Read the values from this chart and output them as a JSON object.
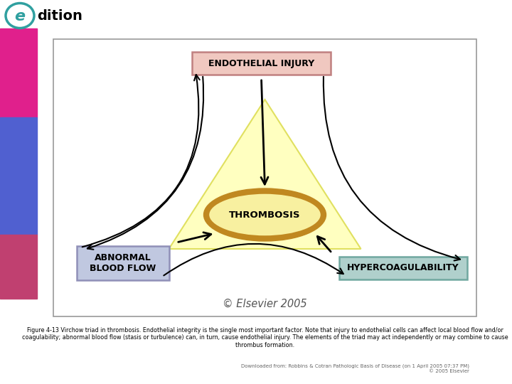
{
  "copyright": "© Elsevier 2005",
  "download_text": "Downloaded from: Robbins & Cotran Pathologic Basis of Disease (on 1 April 2005 07:37 PM)\n© 2005 Elsevier",
  "endothelial_label": "ENDOTHELIAL INJURY",
  "thrombosis_label": "THROMBOSIS",
  "abnormal_label": "ABNORMAL\nBLOOD FLOW",
  "hypercoag_label": "HYPERCOAGULABILITY",
  "caption": "Figure 4-13 Virchow triad in thrombosis. Endothelial integrity is the single most important factor. Note that injury to endothelial cells can affect local blood flow and/or\ncoagulability; abnormal blood flow (stasis or turbulence) can, in turn, cause endothelial injury. The elements of the triad may act independently or may combine to cause\nthrombus formation.",
  "bg_color": "#ffffff",
  "endothelial_box_edge": "#c08080",
  "endothelial_box_fill": "#f0c8c0",
  "abnormal_box_edge": "#9090b8",
  "abnormal_box_fill": "#c0c8e0",
  "hypercoag_box_edge": "#70a8a0",
  "hypercoag_box_fill": "#b0d0cc",
  "triangle_fill": "#ffffc0",
  "triangle_edge": "#e0e060",
  "ellipse_fill": "#f8f0a0",
  "ellipse_edge": "#c08820",
  "arrow_color": "#000000",
  "sidebar_pink": "#e0208c",
  "sidebar_blue": "#5060d0",
  "sidebar_pink2": "#c04070",
  "edition_circle_edge": "#30a0a0",
  "edition_circle_fill": "#ffffff"
}
